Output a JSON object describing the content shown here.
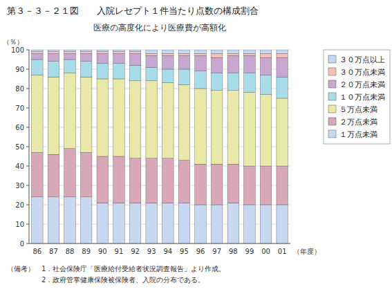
{
  "chart_data": {
    "type": "bar",
    "stacked": true,
    "title": "第３－３－２１図　　入院レセプト１件当たり点数の構成割合",
    "subtitle": "医療の高度化により医療費が高額化",
    "x_label": "（年度）",
    "y_label": "（％）",
    "footnotes": [
      "（備考）　1．社会保険庁「医療給付受給者状況調査報告」より作成。",
      "　　　　　2．政府管掌健康保険被保険者、入院の分布である。"
    ],
    "categories": [
      "86",
      "87",
      "88",
      "89",
      "90",
      "91",
      "92",
      "93",
      "94",
      "95",
      "96",
      "97",
      "98",
      "99",
      "00",
      "01"
    ],
    "series": [
      {
        "name": "１万点未満",
        "color": "#c8d8f0",
        "values": [
          24,
          24,
          24,
          24,
          21,
          21,
          21,
          21,
          21,
          21,
          20,
          20,
          21,
          20,
          20,
          20
        ]
      },
      {
        "name": "２万点未満",
        "color": "#d8a8b8",
        "values": [
          23,
          22,
          25,
          23,
          24,
          24,
          23,
          23,
          23,
          22,
          21,
          21,
          20,
          20,
          20,
          20
        ]
      },
      {
        "name": "５万点未満",
        "color": "#e8e8a8",
        "values": [
          40,
          40,
          39,
          39,
          40,
          40,
          40,
          40,
          39,
          39,
          39,
          38,
          38,
          38,
          37,
          35
        ]
      },
      {
        "name": "１０万点未満",
        "color": "#a8dce8",
        "values": [
          8,
          8,
          7,
          8,
          8,
          8,
          8,
          7,
          7,
          8,
          9,
          9,
          9,
          10,
          10,
          11
        ]
      },
      {
        "name": "２０万点未満",
        "color": "#c8a8d0",
        "values": [
          3,
          4,
          3,
          4,
          5,
          5,
          6,
          6,
          7,
          7,
          8,
          8,
          9,
          9,
          9,
          10
        ]
      },
      {
        "name": "３０万点未満",
        "color": "#f8c0b8",
        "values": [
          1,
          1,
          1,
          1,
          1,
          1,
          1,
          1,
          1,
          1,
          1,
          2,
          1,
          1,
          2,
          2
        ]
      },
      {
        "name": "３０万点以上",
        "color": "#c0d8f0",
        "values": [
          1,
          1,
          1,
          1,
          1,
          1,
          1,
          2,
          2,
          2,
          2,
          2,
          2,
          2,
          2,
          2
        ]
      }
    ],
    "ylim": [
      0,
      100
    ],
    "yticks": [
      0,
      10,
      20,
      30,
      40,
      50,
      60,
      70,
      80,
      90,
      100
    ],
    "grid": true,
    "legend": "right"
  }
}
